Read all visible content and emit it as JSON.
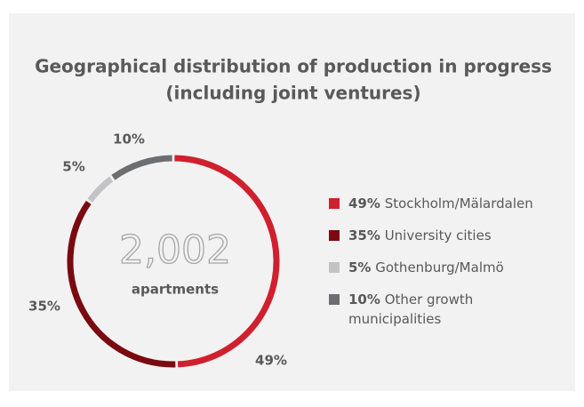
{
  "chart_data": {
    "type": "donut",
    "title": [
      "Geographical distribution of production in progress",
      "(including joint ventures)"
    ],
    "center_value": "2,002",
    "center_label": "apartments",
    "series": [
      {
        "name": "Stockholm/Mälardalen",
        "color": "#d0202e",
        "values": [
          49
        ],
        "value_labels": [
          "49%"
        ]
      },
      {
        "name": "University cities",
        "color": "#7a0a10",
        "values": [
          35
        ],
        "value_labels": [
          "35%"
        ]
      },
      {
        "name": "Gothenburg/Malmö",
        "color": "#c3c3c5",
        "values": [
          5
        ],
        "value_labels": [
          "5%"
        ]
      },
      {
        "name": "Other growth municipalities",
        "color": "#6d6e71",
        "values": [
          10
        ],
        "value_labels": [
          "10%"
        ]
      }
    ],
    "legend": "right"
  }
}
